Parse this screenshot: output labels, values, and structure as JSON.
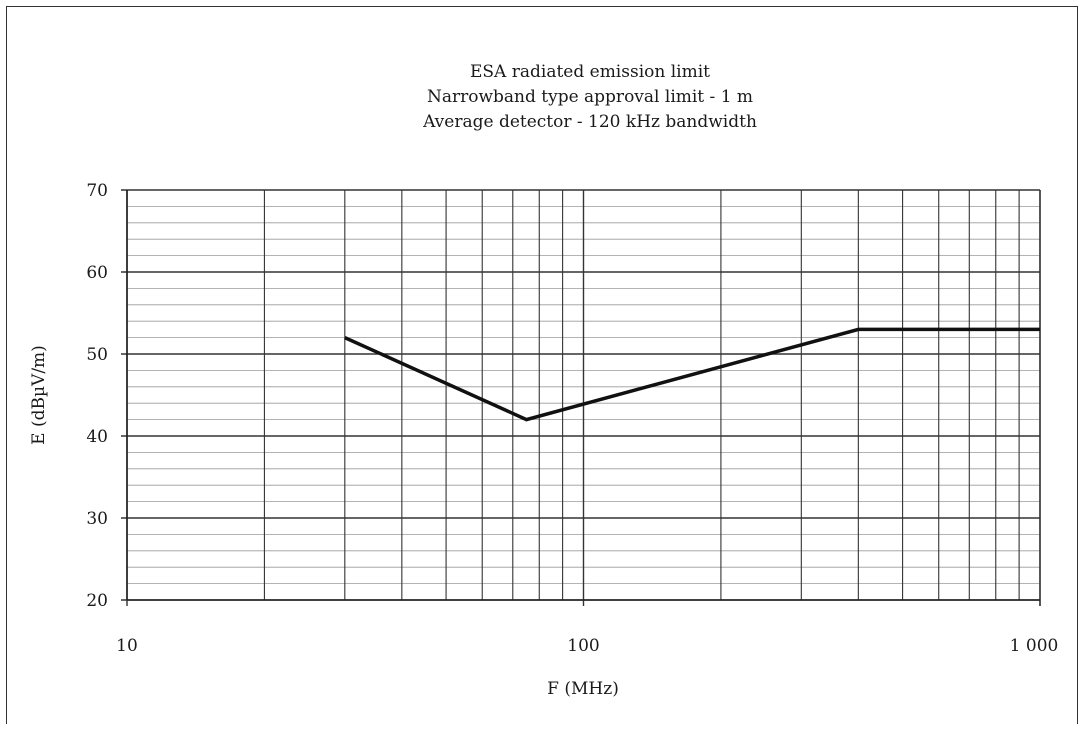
{
  "chart_data": {
    "type": "line",
    "title_lines": [
      "ESA radiated emission limit",
      "Narrowband type approval limit - 1 m",
      "Average detector - 120 kHz bandwidth"
    ],
    "xlabel": "F (MHz)",
    "ylabel": "E (dBµV/m)",
    "x_scale": "log",
    "xlim": [
      10,
      1000
    ],
    "ylim": [
      20,
      70
    ],
    "x_ticks": [
      {
        "value": 10,
        "label": "10"
      },
      {
        "value": 100,
        "label": "100"
      },
      {
        "value": 1000,
        "label": "1 000"
      }
    ],
    "y_ticks": [
      {
        "value": 20,
        "label": "20"
      },
      {
        "value": 30,
        "label": "30"
      },
      {
        "value": 40,
        "label": "40"
      },
      {
        "value": 50,
        "label": "50"
      },
      {
        "value": 60,
        "label": "60"
      },
      {
        "value": 70,
        "label": "70"
      }
    ],
    "grid": true,
    "series": [
      {
        "x": [
          30,
          75,
          400,
          1000
        ],
        "y": [
          52,
          42,
          53,
          53
        ]
      }
    ]
  }
}
